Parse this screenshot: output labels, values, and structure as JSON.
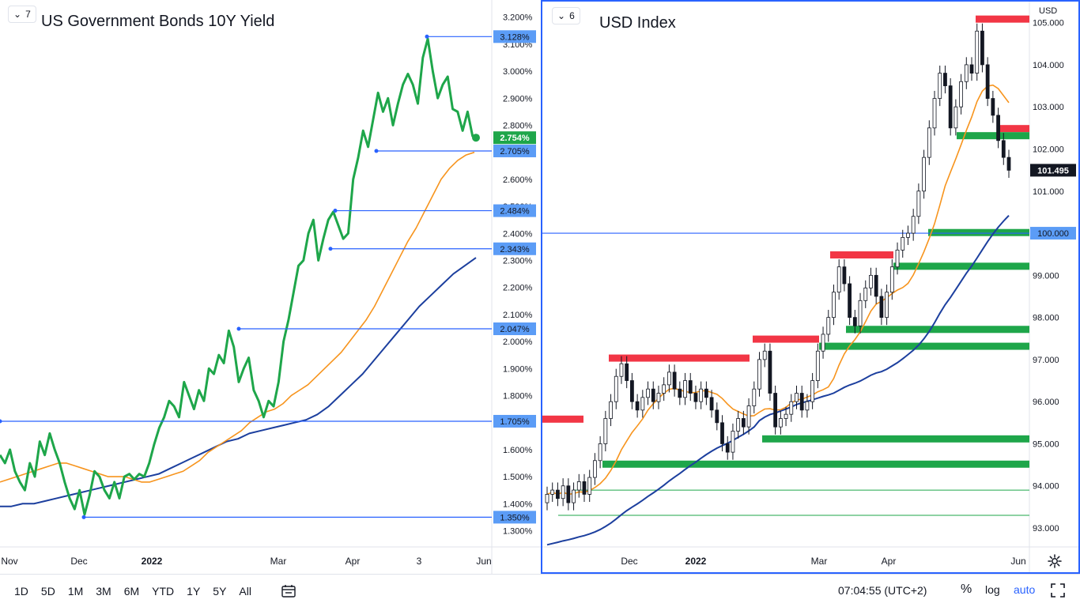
{
  "left": {
    "badge": "7",
    "title": "US Government Bonds 10Y Yield"
  },
  "right": {
    "badge": "6",
    "title": "USD Index",
    "currency_label": "USD"
  },
  "toolbar": {
    "ranges": [
      "1D",
      "5D",
      "1M",
      "3M",
      "6M",
      "YTD",
      "1Y",
      "5Y",
      "All"
    ],
    "clock": "07:04:55 (UTC+2)",
    "percent": "%",
    "log": "log",
    "auto": "auto"
  },
  "icons": {
    "collapse": "chevron-down-icon",
    "calendar": "calendar-range-icon",
    "fullscreen": "fullscreen-icon",
    "settings": "gear-icon"
  },
  "colors": {
    "price": "#1ea64a",
    "ma_fast": "#f7941d",
    "ma_slow": "#1c3f9e",
    "level_line": "#2962ff",
    "resistance": "#f23645",
    "support": "#1ea64a",
    "label_bg": "#5b9cf6"
  },
  "chart_data": [
    {
      "type": "line",
      "title": "US Government Bonds 10Y Yield",
      "x_ticks": [
        "Nov",
        "Dec",
        "2022",
        "Mar",
        "Apr",
        "3",
        "Jun"
      ],
      "y_ticks": [
        "3.200%",
        "3.100%",
        "3.000%",
        "2.900%",
        "2.800%",
        "2.600%",
        "2.500%",
        "2.400%",
        "2.300%",
        "2.200%",
        "2.100%",
        "2.000%",
        "1.900%",
        "1.800%",
        "1.600%",
        "1.500%",
        "1.400%",
        "1.300%"
      ],
      "ylim": [
        1.24,
        3.24
      ],
      "last_value_label": "2.754%",
      "levels": [
        {
          "label": "3.128%",
          "value": 3.128
        },
        {
          "label": "2.705%",
          "value": 2.705
        },
        {
          "label": "2.484%",
          "value": 2.484
        },
        {
          "label": "2.343%",
          "value": 2.343
        },
        {
          "label": "2.047%",
          "value": 2.047
        },
        {
          "label": "1.705%",
          "value": 1.705
        },
        {
          "label": "1.350%",
          "value": 1.35
        }
      ],
      "series": [
        {
          "values": [
            1.58,
            1.55,
            1.6,
            1.52,
            1.48,
            1.45,
            1.55,
            1.5,
            1.63,
            1.58,
            1.66,
            1.6,
            1.55,
            1.48,
            1.42,
            1.38,
            1.45,
            1.36,
            1.43,
            1.52,
            1.5,
            1.45,
            1.42,
            1.48,
            1.42,
            1.5,
            1.51,
            1.49,
            1.51,
            1.5,
            1.55,
            1.62,
            1.68,
            1.72,
            1.78,
            1.76,
            1.72,
            1.85,
            1.8,
            1.75,
            1.82,
            1.78,
            1.9,
            1.88,
            1.95,
            1.92,
            2.04,
            1.98,
            1.85,
            1.9,
            1.94,
            1.82,
            1.78,
            1.72,
            1.78,
            1.76,
            1.85,
            2.0,
            2.08,
            2.18,
            2.28,
            2.3,
            2.4,
            2.45,
            2.3,
            2.38,
            2.45,
            2.48,
            2.43,
            2.38,
            2.4,
            2.6,
            2.68,
            2.78,
            2.72,
            2.82,
            2.92,
            2.85,
            2.9,
            2.8,
            2.88,
            2.95,
            2.99,
            2.95,
            2.88,
            3.05,
            3.12,
            3.0,
            2.9,
            2.95,
            2.98,
            2.86,
            2.85,
            2.78,
            2.85,
            2.76,
            2.754
          ]
        },
        {
          "values": [
            1.48,
            1.49,
            1.5,
            1.51,
            1.52,
            1.53,
            1.54,
            1.55,
            1.55,
            1.54,
            1.53,
            1.52,
            1.51,
            1.5,
            1.5,
            1.5,
            1.49,
            1.48,
            1.48,
            1.49,
            1.5,
            1.51,
            1.52,
            1.54,
            1.56,
            1.59,
            1.61,
            1.63,
            1.65,
            1.67,
            1.7,
            1.72,
            1.74,
            1.75,
            1.77,
            1.8,
            1.82,
            1.84,
            1.87,
            1.9,
            1.93,
            1.96,
            2.0,
            2.04,
            2.08,
            2.13,
            2.19,
            2.25,
            2.31,
            2.37,
            2.42,
            2.48,
            2.54,
            2.6,
            2.64,
            2.67,
            2.69,
            2.7
          ]
        },
        {
          "values": [
            1.39,
            1.39,
            1.4,
            1.4,
            1.41,
            1.42,
            1.43,
            1.44,
            1.45,
            1.46,
            1.47,
            1.48,
            1.49,
            1.5,
            1.51,
            1.53,
            1.55,
            1.57,
            1.59,
            1.61,
            1.63,
            1.64,
            1.66,
            1.67,
            1.68,
            1.69,
            1.7,
            1.71,
            1.73,
            1.76,
            1.8,
            1.84,
            1.88,
            1.93,
            1.98,
            2.03,
            2.08,
            2.13,
            2.17,
            2.21,
            2.25,
            2.28,
            2.31
          ]
        }
      ]
    },
    {
      "type": "candlestick",
      "title": "USD Index",
      "x_ticks": [
        "Dec",
        "2022",
        "Mar",
        "Apr",
        "Jun"
      ],
      "y_ticks": [
        "105.000",
        "104.000",
        "103.000",
        "102.000",
        "101.000",
        "100.000",
        "99.000",
        "98.000",
        "97.000",
        "96.000",
        "95.000",
        "94.000",
        "93.000"
      ],
      "ylim": [
        92.55,
        105.35
      ],
      "last_value_label": "101.495",
      "level_label": "100.000",
      "level_value": 100.0,
      "resistance_zones": [
        105.0,
        102.4,
        99.4,
        97.4,
        96.95,
        95.5
      ],
      "support_zones": [
        102.4,
        100.1,
        99.3,
        97.8,
        97.4,
        95.2,
        94.6
      ],
      "closes": [
        93.8,
        93.9,
        93.7,
        94.0,
        93.6,
        93.9,
        94.1,
        93.8,
        94.2,
        94.6,
        95.0,
        95.6,
        96.0,
        96.6,
        96.9,
        96.5,
        96.0,
        95.8,
        96.1,
        96.3,
        96.0,
        96.2,
        96.4,
        96.7,
        96.3,
        96.1,
        96.5,
        96.2,
        96.0,
        96.3,
        96.1,
        95.8,
        95.5,
        95.0,
        94.8,
        95.3,
        95.6,
        95.4,
        95.9,
        96.3,
        97.0,
        97.2,
        96.2,
        95.4,
        95.6,
        95.7,
        96.0,
        96.2,
        95.8,
        96.0,
        96.5,
        97.2,
        97.6,
        98.0,
        98.6,
        99.2,
        98.8,
        98.0,
        97.8,
        98.4,
        98.7,
        99.0,
        98.5,
        98.0,
        98.6,
        99.2,
        99.6,
        99.9,
        100.0,
        100.4,
        101.0,
        101.8,
        102.5,
        103.2,
        103.8,
        103.5,
        102.5,
        103.0,
        103.6,
        104.0,
        103.8,
        104.8,
        104.0,
        103.2,
        102.8,
        102.2,
        101.8,
        101.495
      ]
    }
  ]
}
